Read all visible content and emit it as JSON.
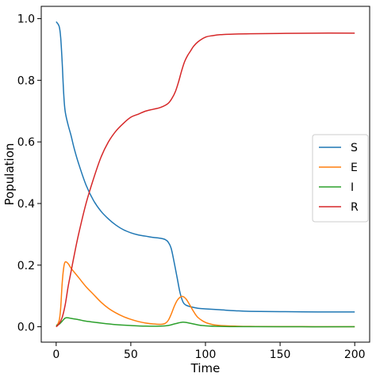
{
  "chart_data": {
    "type": "line",
    "title": "",
    "xlabel": "Time",
    "ylabel": "Population",
    "xlim": [
      -10,
      210
    ],
    "ylim": [
      -0.05,
      1.04
    ],
    "xticks": [
      0,
      50,
      100,
      150,
      200
    ],
    "yticks": [
      0.0,
      0.2,
      0.4,
      0.6,
      0.8,
      1.0
    ],
    "xtick_labels": [
      "0",
      "50",
      "100",
      "150",
      "200"
    ],
    "ytick_labels": [
      "0.0",
      "0.2",
      "0.4",
      "0.6",
      "0.8",
      "1.0"
    ],
    "grid": false,
    "legend_position": "right",
    "series": [
      {
        "name": "S",
        "color": "#1f77b4",
        "x": [
          0,
          2,
          3,
          4,
          5,
          6,
          8,
          10,
          12,
          15,
          20,
          25,
          30,
          35,
          40,
          45,
          50,
          55,
          60,
          65,
          70,
          73,
          75,
          77,
          79,
          81,
          83,
          85,
          87,
          90,
          95,
          100,
          110,
          120,
          130,
          150,
          175,
          200
        ],
        "values": [
          0.99,
          0.975,
          0.94,
          0.86,
          0.76,
          0.7,
          0.655,
          0.62,
          0.58,
          0.53,
          0.46,
          0.41,
          0.375,
          0.35,
          0.33,
          0.315,
          0.305,
          0.298,
          0.294,
          0.29,
          0.287,
          0.283,
          0.275,
          0.255,
          0.21,
          0.16,
          0.11,
          0.08,
          0.07,
          0.065,
          0.06,
          0.058,
          0.055,
          0.052,
          0.05,
          0.049,
          0.048,
          0.048
        ]
      },
      {
        "name": "E",
        "color": "#ff7f0e",
        "x": [
          0,
          2,
          3,
          4,
          5,
          6,
          8,
          10,
          15,
          20,
          25,
          30,
          35,
          40,
          45,
          50,
          55,
          60,
          65,
          70,
          73,
          75,
          77,
          79,
          81,
          83,
          85,
          87,
          89,
          92,
          95,
          100,
          105,
          110,
          120,
          130,
          150,
          200
        ],
        "values": [
          0.0,
          0.02,
          0.06,
          0.14,
          0.19,
          0.21,
          0.205,
          0.19,
          0.16,
          0.13,
          0.105,
          0.08,
          0.06,
          0.045,
          0.033,
          0.024,
          0.017,
          0.012,
          0.009,
          0.008,
          0.011,
          0.02,
          0.04,
          0.065,
          0.085,
          0.096,
          0.098,
          0.09,
          0.075,
          0.05,
          0.03,
          0.014,
          0.007,
          0.004,
          0.002,
          0.001,
          0.0005,
          0.0
        ]
      },
      {
        "name": "I",
        "color": "#2ca02c",
        "x": [
          0,
          2,
          4,
          6,
          8,
          10,
          15,
          20,
          30,
          40,
          50,
          60,
          70,
          75,
          80,
          85,
          90,
          95,
          100,
          110,
          120,
          150,
          200
        ],
        "values": [
          0.005,
          0.008,
          0.018,
          0.028,
          0.029,
          0.027,
          0.023,
          0.018,
          0.012,
          0.007,
          0.004,
          0.002,
          0.002,
          0.004,
          0.01,
          0.015,
          0.011,
          0.006,
          0.003,
          0.001,
          0.0005,
          0.0,
          0.0
        ]
      },
      {
        "name": "R",
        "color": "#d62728",
        "x": [
          0,
          2,
          4,
          6,
          8,
          10,
          12,
          15,
          20,
          25,
          30,
          35,
          40,
          45,
          50,
          55,
          60,
          65,
          70,
          75,
          78,
          80,
          82,
          84,
          86,
          88,
          90,
          92,
          95,
          100,
          105,
          110,
          120,
          130,
          150,
          175,
          200
        ],
        "values": [
          0.0,
          0.01,
          0.03,
          0.07,
          0.13,
          0.18,
          0.23,
          0.3,
          0.4,
          0.48,
          0.55,
          0.6,
          0.635,
          0.66,
          0.68,
          0.69,
          0.7,
          0.706,
          0.712,
          0.725,
          0.745,
          0.765,
          0.795,
          0.83,
          0.86,
          0.88,
          0.895,
          0.91,
          0.925,
          0.94,
          0.945,
          0.948,
          0.95,
          0.951,
          0.952,
          0.953,
          0.953
        ]
      }
    ]
  }
}
